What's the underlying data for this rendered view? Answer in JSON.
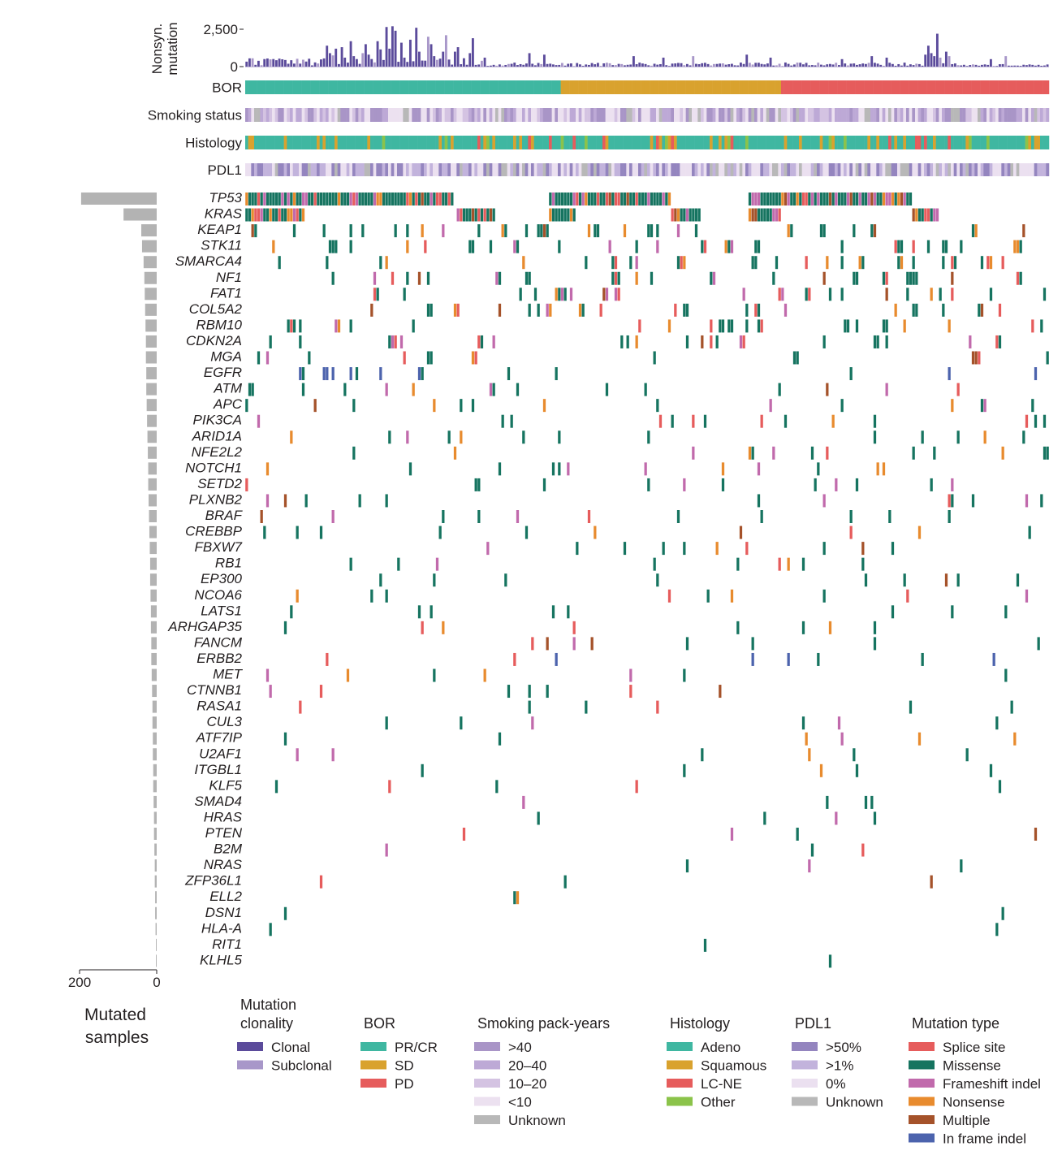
{
  "chart_data": {
    "type": "oncoprint",
    "n_samples": 270,
    "top_panel": {
      "ylabel_line1": "Nonsyn.",
      "ylabel_line2": "mutation",
      "ticks": [
        {
          "label": "2,500",
          "value": 2500
        },
        {
          "label": "0",
          "value": 0
        }
      ],
      "ymax": 2800
    },
    "tracks": [
      {
        "key": "bor",
        "label": "BOR"
      },
      {
        "key": "smoking",
        "label": "Smoking status"
      },
      {
        "key": "histology",
        "label": "Histology"
      },
      {
        "key": "pdl1",
        "label": "PDL1"
      }
    ],
    "bor_groups": [
      {
        "name": "PR/CR",
        "n": 106
      },
      {
        "name": "SD",
        "n": 74
      },
      {
        "name": "PD",
        "n": 90
      }
    ],
    "genes": [
      {
        "name": "TP53",
        "count": 196
      },
      {
        "name": "KRAS",
        "count": 86
      },
      {
        "name": "KEAP1",
        "count": 40
      },
      {
        "name": "STK11",
        "count": 38
      },
      {
        "name": "SMARCA4",
        "count": 34
      },
      {
        "name": "NF1",
        "count": 32
      },
      {
        "name": "FAT1",
        "count": 31
      },
      {
        "name": "COL5A2",
        "count": 30
      },
      {
        "name": "RBM10",
        "count": 29
      },
      {
        "name": "CDKN2A",
        "count": 28
      },
      {
        "name": "MGA",
        "count": 28
      },
      {
        "name": "EGFR",
        "count": 27
      },
      {
        "name": "ATM",
        "count": 27
      },
      {
        "name": "APC",
        "count": 26
      },
      {
        "name": "PIK3CA",
        "count": 25
      },
      {
        "name": "ARID1A",
        "count": 24
      },
      {
        "name": "NFE2L2",
        "count": 23
      },
      {
        "name": "NOTCH1",
        "count": 22
      },
      {
        "name": "SETD2",
        "count": 22
      },
      {
        "name": "PLXNB2",
        "count": 21
      },
      {
        "name": "BRAF",
        "count": 20
      },
      {
        "name": "CREBBP",
        "count": 19
      },
      {
        "name": "FBXW7",
        "count": 18
      },
      {
        "name": "RB1",
        "count": 17
      },
      {
        "name": "EP300",
        "count": 17
      },
      {
        "name": "NCOA6",
        "count": 16
      },
      {
        "name": "LATS1",
        "count": 15
      },
      {
        "name": "ARHGAP35",
        "count": 15
      },
      {
        "name": "FANCM",
        "count": 14
      },
      {
        "name": "ERBB2",
        "count": 14
      },
      {
        "name": "MET",
        "count": 13
      },
      {
        "name": "CTNNB1",
        "count": 12
      },
      {
        "name": "RASA1",
        "count": 11
      },
      {
        "name": "CUL3",
        "count": 11
      },
      {
        "name": "ATF7IP",
        "count": 10
      },
      {
        "name": "U2AF1",
        "count": 10
      },
      {
        "name": "ITGBL1",
        "count": 9
      },
      {
        "name": "KLF5",
        "count": 9
      },
      {
        "name": "SMAD4",
        "count": 8
      },
      {
        "name": "HRAS",
        "count": 7
      },
      {
        "name": "PTEN",
        "count": 7
      },
      {
        "name": "B2M",
        "count": 6
      },
      {
        "name": "NRAS",
        "count": 5
      },
      {
        "name": "ZFP36L1",
        "count": 5
      },
      {
        "name": "ELL2",
        "count": 4
      },
      {
        "name": "DSN1",
        "count": 4
      },
      {
        "name": "HLA-A",
        "count": 3
      },
      {
        "name": "RIT1",
        "count": 2
      },
      {
        "name": "KLHL5",
        "count": 2
      }
    ],
    "left_bar": {
      "xmax": 200,
      "tick_labels": [
        {
          "label": "200",
          "value": 200
        },
        {
          "label": "0",
          "value": 0
        }
      ],
      "xlabel_line1": "Mutated",
      "xlabel_line2": "samples"
    }
  },
  "legend": [
    {
      "title": "Mutation\nclonality",
      "items": [
        {
          "label": "Clonal",
          "color": "#5b4b9b"
        },
        {
          "label": "Subclonal",
          "color": "#a897c9"
        }
      ]
    },
    {
      "title": "BOR",
      "items": [
        {
          "label": "PR/CR",
          "color": "#3fb7a1"
        },
        {
          "label": "SD",
          "color": "#d9a22e"
        },
        {
          "label": "PD",
          "color": "#e65c5c"
        }
      ]
    },
    {
      "title": "Smoking pack-years",
      "items": [
        {
          "label": ">40",
          "color": "#a995c7"
        },
        {
          "label": "20–40",
          "color": "#bda9d6"
        },
        {
          "label": "10–20",
          "color": "#d4c3e2"
        },
        {
          "label": "<10",
          "color": "#ece1f0"
        },
        {
          "label": "Unknown",
          "color": "#b8b8b8"
        }
      ]
    },
    {
      "title": "Histology",
      "items": [
        {
          "label": "Adeno",
          "color": "#3fb7a1"
        },
        {
          "label": "Squamous",
          "color": "#d9a22e"
        },
        {
          "label": "LC-NE",
          "color": "#e65c5c"
        },
        {
          "label": "Other",
          "color": "#8bc34a"
        }
      ]
    },
    {
      "title": "PDL1",
      "items": [
        {
          "label": ">50%",
          "color": "#9485bf"
        },
        {
          "label": ">1%",
          "color": "#c2b3dc"
        },
        {
          "label": "0%",
          "color": "#ebe0f0"
        },
        {
          "label": "Unknown",
          "color": "#b8b8b8"
        }
      ]
    },
    {
      "title": "Mutation type",
      "items": [
        {
          "label": "Splice site",
          "color": "#e65c5c"
        },
        {
          "label": "Missense",
          "color": "#167460"
        },
        {
          "label": "Frameshift indel",
          "color": "#c16aac"
        },
        {
          "label": "Nonsense",
          "color": "#e88b2e"
        },
        {
          "label": "Multiple",
          "color": "#a5522a"
        },
        {
          "label": "In frame indel",
          "color": "#4c63ad"
        }
      ]
    }
  ]
}
